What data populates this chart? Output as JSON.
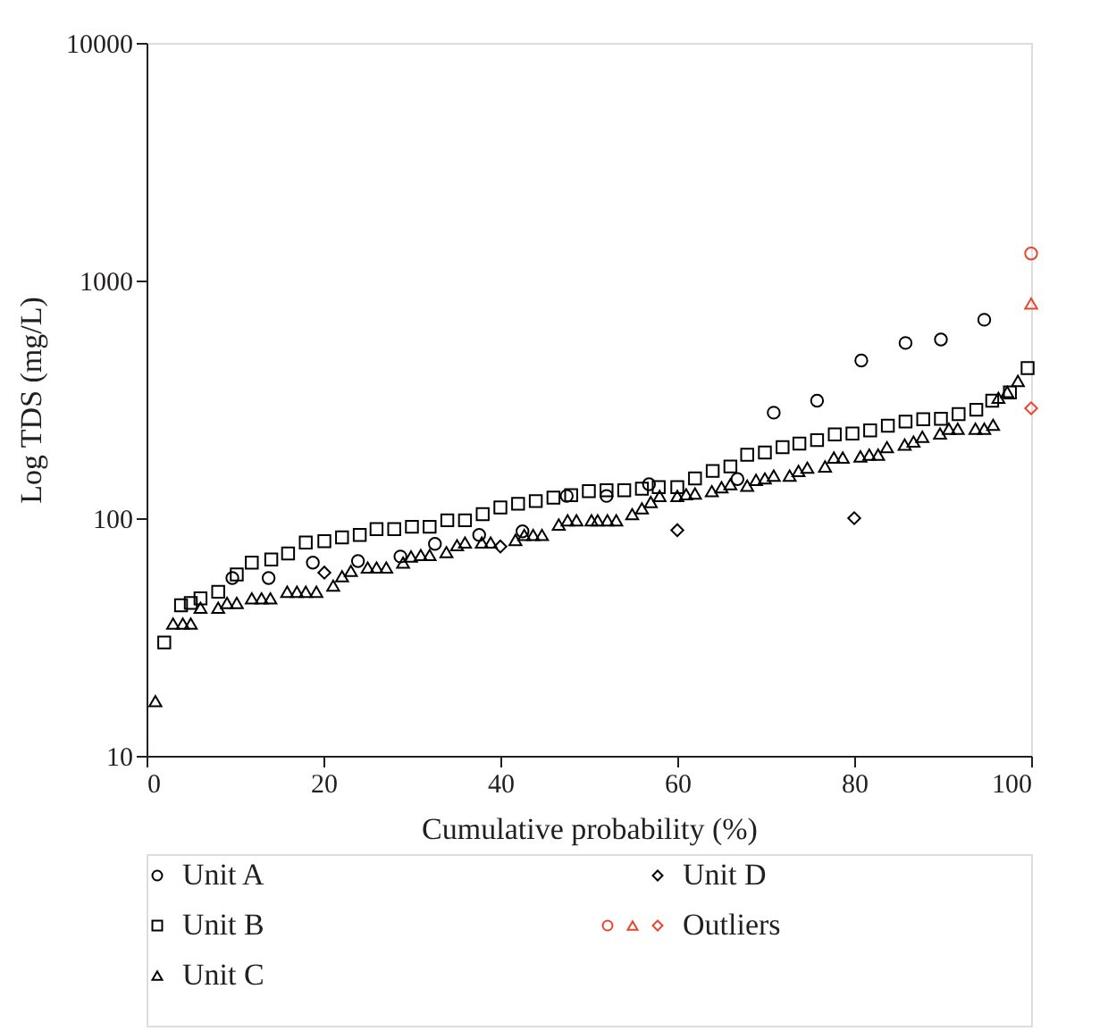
{
  "chart_data": {
    "type": "scatter",
    "xlabel": "Cumulative probability (%)",
    "ylabel": "Log TDS (mg/L)",
    "log": "y",
    "xlim": [
      0,
      100
    ],
    "xticks": [
      0,
      20,
      40,
      60,
      80,
      100
    ],
    "ylim": [
      10,
      10000
    ],
    "yticks": [
      10,
      100,
      1000,
      10000
    ],
    "grid": false,
    "legend": "bottom",
    "series": [
      {
        "name": "Unit A",
        "color": "#000000",
        "marker": "circle",
        "x": [
          9.7,
          13.8,
          18.8,
          23.9,
          28.7,
          32.6,
          37.6,
          42.5,
          47.5,
          52,
          56.8,
          66.8,
          70.9,
          75.8,
          80.8,
          85.8,
          89.8,
          94.7
        ],
        "values": [
          56,
          56,
          65,
          66,
          69,
          78,
          85,
          88,
          124,
          124,
          139,
          146,
          278,
          312,
          461,
          546,
          565,
          684
        ]
      },
      {
        "name": "Unit B",
        "color": "#000000",
        "marker": "square",
        "x": [
          2,
          3.9,
          5,
          6.1,
          8.1,
          10.2,
          11.9,
          14.1,
          16,
          18,
          20.1,
          22.1,
          24.1,
          26,
          28,
          30,
          32,
          34,
          36,
          38,
          40,
          42,
          44,
          46,
          48,
          50,
          52,
          54,
          56,
          57.9,
          60,
          62,
          64,
          66,
          67.9,
          69.9,
          71.9,
          73.8,
          75.8,
          77.8,
          79.8,
          81.8,
          83.8,
          85.8,
          87.8,
          89.8,
          91.8,
          93.8,
          95.6,
          97.6,
          99.6
        ],
        "values": [
          30,
          43,
          44,
          46,
          49,
          58,
          65,
          67,
          71,
          79,
          80,
          83,
          85,
          90,
          90,
          92,
          92,
          98,
          98,
          104,
          111,
          115,
          118,
          122,
          125,
          130,
          131,
          131,
          133,
          135,
          135,
          147,
          158,
          165,
          185,
          189,
          199,
          206,
          213,
          225,
          227,
          234,
          245,
          255,
          261,
          262,
          274,
          286,
          312,
          338,
          428
        ]
      },
      {
        "name": "Unit C",
        "color": "#000000",
        "marker": "triangle",
        "x": [
          1,
          3,
          4.1,
          5,
          6.1,
          8.1,
          9.1,
          10.2,
          11.9,
          13,
          14,
          15.9,
          17,
          18,
          19.2,
          21.1,
          22.1,
          23.1,
          25,
          26,
          27.1,
          29,
          29.9,
          31,
          32,
          33.9,
          35.1,
          36,
          37.9,
          38.9,
          41.7,
          42.7,
          43.7,
          44.7,
          46.6,
          47.6,
          48.6,
          50.3,
          51,
          52.1,
          53.1,
          54.9,
          56,
          57,
          58,
          60,
          61,
          62,
          63.9,
          65,
          66,
          67.9,
          68.9,
          69.9,
          70.9,
          72.7,
          73.7,
          74.7,
          76.7,
          77.7,
          78.7,
          80.7,
          81.7,
          82.7,
          83.7,
          85.7,
          86.7,
          87.7,
          89.7,
          90.7,
          91.7,
          93.7,
          94.7,
          95.7,
          96.3,
          97.3,
          98.5
        ],
        "values": [
          17,
          36,
          36,
          36,
          42,
          42,
          44,
          44,
          46,
          46,
          46,
          49,
          49,
          49,
          49,
          52,
          57,
          60,
          62,
          62,
          62,
          65,
          69,
          70,
          70,
          72,
          77,
          79,
          79,
          79,
          81,
          85,
          85,
          85,
          94,
          98,
          98,
          98,
          98,
          98,
          98,
          104,
          110,
          117,
          124,
          124,
          126,
          127,
          130,
          135,
          139,
          137,
          145,
          147,
          151,
          151,
          158,
          163,
          165,
          180,
          180,
          182,
          185,
          185,
          199,
          204,
          210,
          220,
          227,
          238,
          238,
          238,
          238,
          247,
          321,
          340,
          378
        ]
      },
      {
        "name": "Unit D",
        "color": "#000000",
        "marker": "diamond",
        "x": [
          20.1,
          40,
          60,
          80
        ],
        "values": [
          59,
          76,
          89,
          100
        ]
      },
      {
        "name": "Outliers",
        "color": "#e8452c",
        "marker": "circle",
        "x": [
          100
        ],
        "values": [
          1300
        ]
      },
      {
        "color": "#e8452c",
        "marker": "triangle",
        "x": [
          100
        ],
        "values": [
          800
        ]
      },
      {
        "color": "#e8452c",
        "marker": "diamond",
        "x": [
          100
        ],
        "values": [
          290
        ]
      }
    ]
  }
}
